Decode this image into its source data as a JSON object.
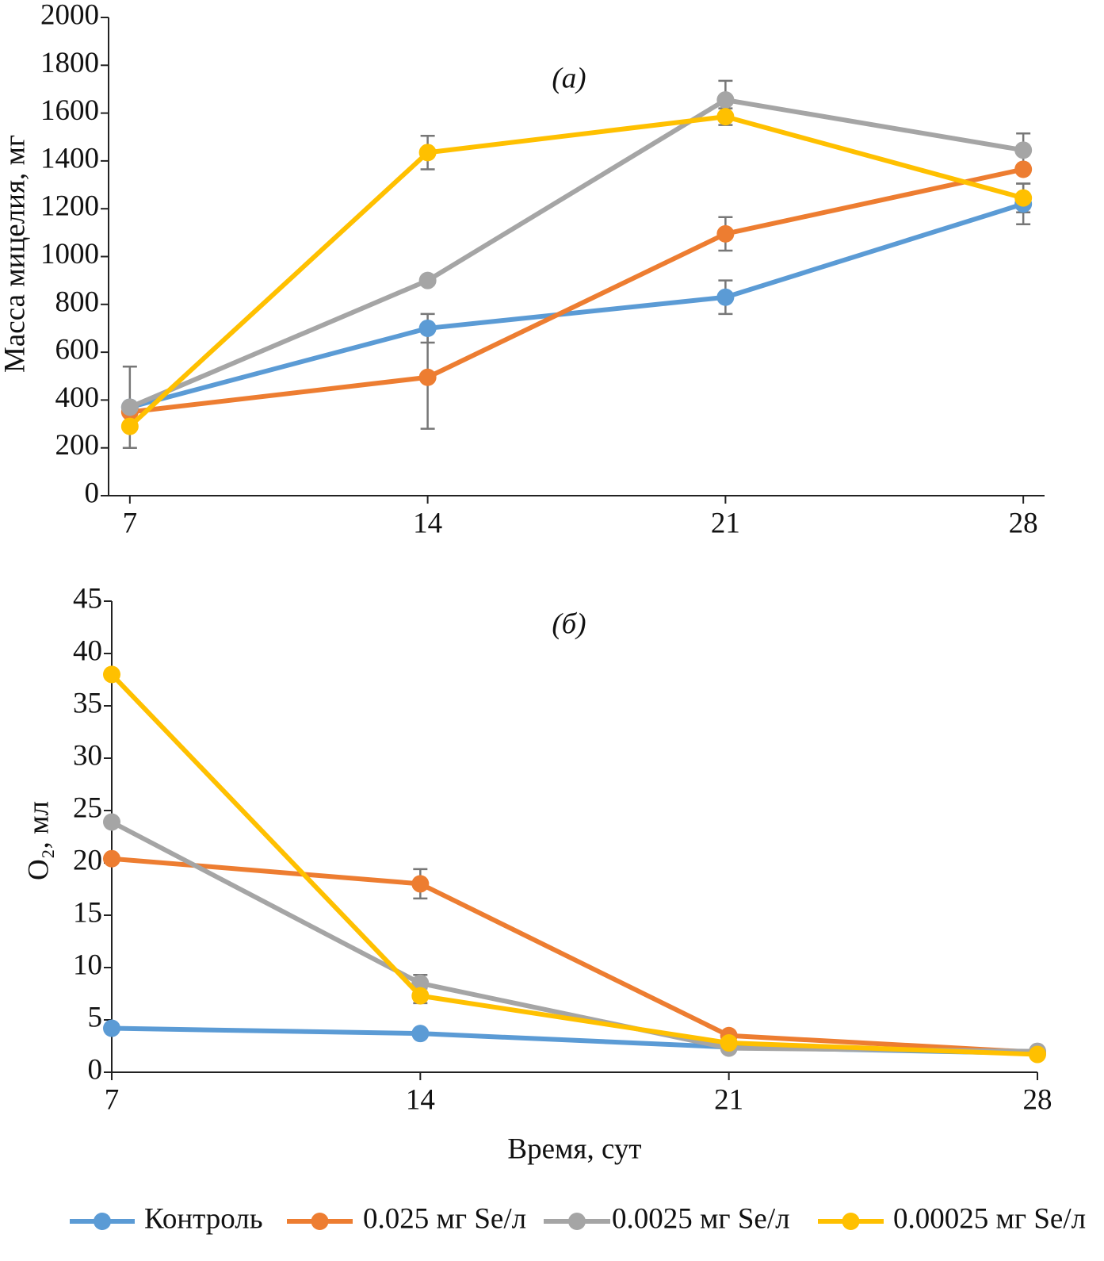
{
  "chart_data": [
    {
      "type": "line",
      "annotation": "(а)",
      "y_label": "Масса мицелия, мг",
      "x": [
        7,
        14,
        21,
        28
      ],
      "xlim": [
        6.5,
        28.5
      ],
      "xticks": [
        7,
        14,
        21,
        28
      ],
      "ylim": [
        0,
        2000
      ],
      "yticks": [
        0,
        200,
        400,
        600,
        800,
        1000,
        1200,
        1400,
        1600,
        1800,
        2000
      ],
      "series": [
        {
          "name": "Контроль",
          "color": "#5b9bd5",
          "values": [
            370,
            700,
            830,
            1220
          ],
          "errors": [
            null,
            60,
            70,
            85
          ]
        },
        {
          "name": "0.025 мг Se/л",
          "color": "#ed7d31",
          "values": [
            350,
            495,
            1095,
            1365
          ],
          "errors": [
            null,
            215,
            70,
            null
          ]
        },
        {
          "name": "0.0025 мг Se/л",
          "color": "#a5a5a5",
          "values": [
            370,
            900,
            1655,
            1445
          ],
          "errors": [
            170,
            15,
            80,
            70
          ]
        },
        {
          "name": "0.00025 мг Se/л",
          "color": "#ffc000",
          "values": [
            290,
            1435,
            1585,
            1245
          ],
          "errors": [
            null,
            70,
            35,
            60
          ]
        }
      ]
    },
    {
      "type": "line",
      "annotation": "(б)",
      "y_label": "O₂, мл",
      "x_label": "Время, сут",
      "x": [
        7,
        14,
        21,
        28
      ],
      "xlim": [
        7,
        28
      ],
      "xticks": [
        7,
        14,
        21,
        28
      ],
      "ylim": [
        0,
        45
      ],
      "yticks": [
        0,
        5,
        10,
        15,
        20,
        25,
        30,
        35,
        40,
        45
      ],
      "series": [
        {
          "color": "#5b9bd5",
          "values": [
            4.2,
            3.7,
            2.4,
            1.8
          ],
          "errors": [
            null,
            null,
            null,
            null
          ]
        },
        {
          "color": "#ed7d31",
          "values": [
            20.4,
            18,
            3.5,
            1.9
          ],
          "errors": [
            null,
            1.4,
            null,
            null
          ]
        },
        {
          "color": "#a5a5a5",
          "values": [
            23.9,
            8.5,
            2.3,
            2.0
          ],
          "errors": [
            null,
            0.8,
            null,
            null
          ]
        },
        {
          "color": "#ffc000",
          "values": [
            38,
            7.3,
            2.8,
            1.7
          ],
          "errors": [
            null,
            0.7,
            null,
            null
          ]
        }
      ]
    }
  ]
}
